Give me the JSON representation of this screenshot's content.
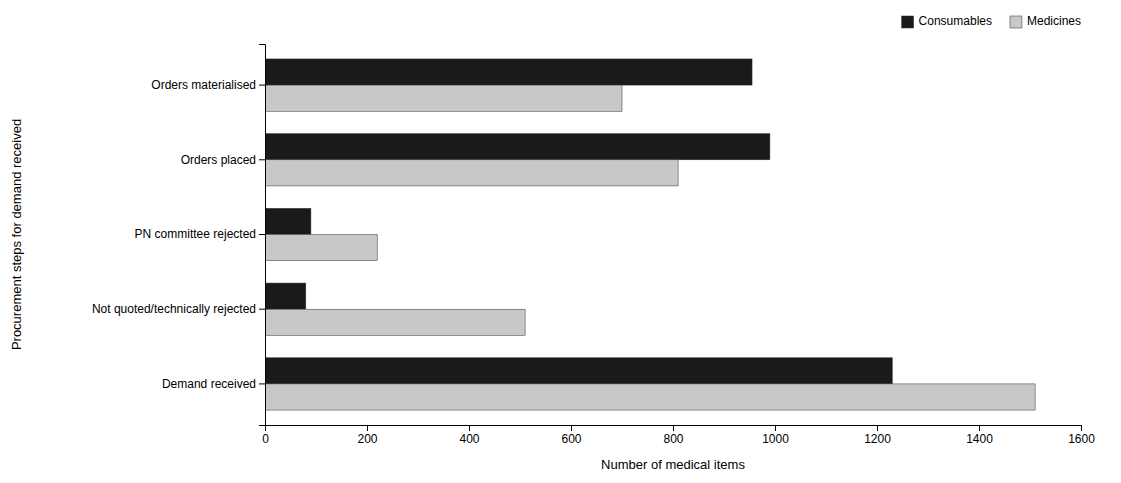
{
  "chart_data": {
    "type": "bar",
    "orientation": "horizontal",
    "categories": [
      "Demand received",
      "Not quoted/technically rejected",
      "PN committee rejected",
      "Orders placed",
      "Orders materialised"
    ],
    "series": [
      {
        "name": "Consumables",
        "color": "#1a1a1a",
        "values": [
          1230,
          80,
          90,
          990,
          955
        ]
      },
      {
        "name": "Medicines",
        "color": "#c8c8c8",
        "values": [
          1510,
          510,
          220,
          810,
          700
        ]
      }
    ],
    "xlabel": "Number of medical items",
    "ylabel": "Procurement steps for demand received",
    "xlim": [
      0,
      1600
    ],
    "xticks": [
      0,
      200,
      400,
      600,
      800,
      1000,
      1200,
      1400,
      1600
    ],
    "legend": "upper right",
    "grid": false
  }
}
